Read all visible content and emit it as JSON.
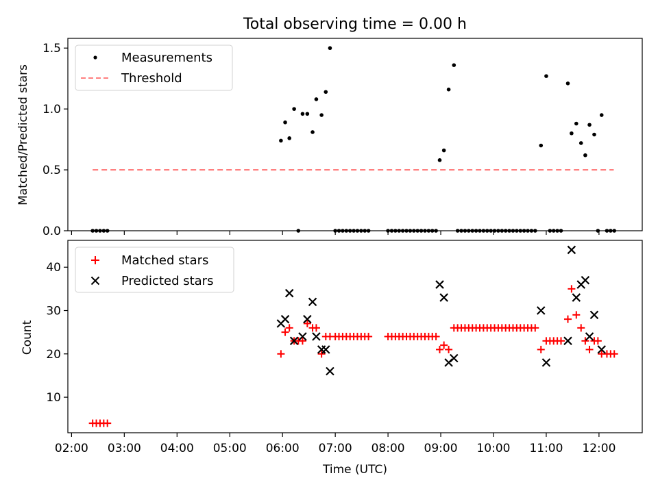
{
  "chart_data": [
    {
      "type": "scatter",
      "title": "Total observing time = 0.00 h",
      "ylabel": "Matched/Predicted stars",
      "xlabel": "",
      "ylim": [
        0,
        1.58
      ],
      "yticks": [
        0.0,
        0.5,
        1.0,
        1.5
      ],
      "ytick_labels": [
        "0.0",
        "0.5",
        "1.0",
        "1.5"
      ],
      "legend_position": "top-left",
      "grid": false,
      "series": [
        {
          "name": "Measurements",
          "marker": "dot",
          "color": "#000000",
          "points": [
            [
              2.4,
              0
            ],
            [
              2.47,
              0
            ],
            [
              2.54,
              0
            ],
            [
              2.61,
              0
            ],
            [
              2.68,
              0
            ],
            [
              5.97,
              0.74
            ],
            [
              6.05,
              0.89
            ],
            [
              6.13,
              0.76
            ],
            [
              6.22,
              1.0
            ],
            [
              6.3,
              0
            ],
            [
              6.38,
              0.96
            ],
            [
              6.47,
              0.96
            ],
            [
              6.57,
              0.81
            ],
            [
              6.64,
              1.08
            ],
            [
              6.74,
              0.95
            ],
            [
              6.82,
              1.14
            ],
            [
              6.9,
              1.5
            ],
            [
              7.0,
              0
            ],
            [
              7.07,
              0
            ],
            [
              7.14,
              0
            ],
            [
              7.21,
              0
            ],
            [
              7.28,
              0
            ],
            [
              7.35,
              0
            ],
            [
              7.42,
              0
            ],
            [
              7.49,
              0
            ],
            [
              7.56,
              0
            ],
            [
              7.63,
              0
            ],
            [
              8.0,
              0
            ],
            [
              8.07,
              0
            ],
            [
              8.14,
              0
            ],
            [
              8.21,
              0
            ],
            [
              8.28,
              0
            ],
            [
              8.35,
              0
            ],
            [
              8.42,
              0
            ],
            [
              8.49,
              0
            ],
            [
              8.56,
              0
            ],
            [
              8.63,
              0
            ],
            [
              8.7,
              0
            ],
            [
              8.77,
              0
            ],
            [
              8.84,
              0
            ],
            [
              8.91,
              0
            ],
            [
              8.98,
              0.58
            ],
            [
              9.06,
              0.66
            ],
            [
              9.15,
              1.16
            ],
            [
              9.25,
              1.36
            ],
            [
              9.32,
              0
            ],
            [
              9.39,
              0
            ],
            [
              9.46,
              0
            ],
            [
              9.53,
              0
            ],
            [
              9.6,
              0
            ],
            [
              9.67,
              0
            ],
            [
              9.74,
              0
            ],
            [
              9.81,
              0
            ],
            [
              9.88,
              0
            ],
            [
              9.95,
              0
            ],
            [
              10.02,
              0
            ],
            [
              10.09,
              0
            ],
            [
              10.16,
              0
            ],
            [
              10.23,
              0
            ],
            [
              10.3,
              0
            ],
            [
              10.37,
              0
            ],
            [
              10.44,
              0
            ],
            [
              10.51,
              0
            ],
            [
              10.58,
              0
            ],
            [
              10.65,
              0
            ],
            [
              10.72,
              0
            ],
            [
              10.79,
              0
            ],
            [
              10.9,
              0.7
            ],
            [
              11.0,
              1.27
            ],
            [
              11.07,
              0
            ],
            [
              11.14,
              0
            ],
            [
              11.21,
              0
            ],
            [
              11.28,
              0
            ],
            [
              11.41,
              1.21
            ],
            [
              11.48,
              0.8
            ],
            [
              11.57,
              0.88
            ],
            [
              11.66,
              0.72
            ],
            [
              11.74,
              0.62
            ],
            [
              11.82,
              0.87
            ],
            [
              11.91,
              0.79
            ],
            [
              11.98,
              0
            ],
            [
              12.05,
              0.95
            ],
            [
              12.15,
              0
            ],
            [
              12.22,
              0
            ],
            [
              12.29,
              0
            ]
          ]
        },
        {
          "name": "Threshold",
          "marker": "dashed-line",
          "color": "#ff7f7f",
          "points": [
            [
              2.4,
              0.5
            ],
            [
              12.28,
              0.5
            ]
          ]
        }
      ]
    },
    {
      "type": "scatter",
      "title": "",
      "ylabel": "Count",
      "xlabel": "Time (UTC)",
      "xlim": [
        1.93,
        12.82
      ],
      "xticks": [
        2,
        3,
        4,
        5,
        6,
        7,
        8,
        9,
        10,
        11,
        12
      ],
      "xtick_labels": [
        "02:00",
        "03:00",
        "04:00",
        "05:00",
        "06:00",
        "07:00",
        "08:00",
        "09:00",
        "10:00",
        "11:00",
        "12:00"
      ],
      "ylim": [
        1.8,
        46.2
      ],
      "yticks": [
        10,
        20,
        30,
        40
      ],
      "ytick_labels": [
        "10",
        "20",
        "30",
        "40"
      ],
      "legend_position": "top-left",
      "grid": false,
      "series": [
        {
          "name": "Matched stars",
          "marker": "plus",
          "color": "#ff0000",
          "points": [
            [
              2.4,
              4
            ],
            [
              2.47,
              4
            ],
            [
              2.54,
              4
            ],
            [
              2.61,
              4
            ],
            [
              2.68,
              4
            ],
            [
              5.97,
              20
            ],
            [
              6.05,
              25
            ],
            [
              6.13,
              26
            ],
            [
              6.22,
              23
            ],
            [
              6.3,
              23
            ],
            [
              6.38,
              23
            ],
            [
              6.47,
              27
            ],
            [
              6.57,
              26
            ],
            [
              6.64,
              26
            ],
            [
              6.74,
              20
            ],
            [
              6.82,
              24
            ],
            [
              6.9,
              24
            ],
            [
              7.0,
              24
            ],
            [
              7.07,
              24
            ],
            [
              7.14,
              24
            ],
            [
              7.21,
              24
            ],
            [
              7.28,
              24
            ],
            [
              7.35,
              24
            ],
            [
              7.42,
              24
            ],
            [
              7.49,
              24
            ],
            [
              7.56,
              24
            ],
            [
              7.63,
              24
            ],
            [
              8.0,
              24
            ],
            [
              8.07,
              24
            ],
            [
              8.14,
              24
            ],
            [
              8.21,
              24
            ],
            [
              8.28,
              24
            ],
            [
              8.35,
              24
            ],
            [
              8.42,
              24
            ],
            [
              8.49,
              24
            ],
            [
              8.56,
              24
            ],
            [
              8.63,
              24
            ],
            [
              8.7,
              24
            ],
            [
              8.77,
              24
            ],
            [
              8.84,
              24
            ],
            [
              8.91,
              24
            ],
            [
              8.98,
              21
            ],
            [
              9.06,
              22
            ],
            [
              9.15,
              21
            ],
            [
              9.25,
              26
            ],
            [
              9.32,
              26
            ],
            [
              9.39,
              26
            ],
            [
              9.46,
              26
            ],
            [
              9.53,
              26
            ],
            [
              9.6,
              26
            ],
            [
              9.67,
              26
            ],
            [
              9.74,
              26
            ],
            [
              9.81,
              26
            ],
            [
              9.88,
              26
            ],
            [
              9.95,
              26
            ],
            [
              10.02,
              26
            ],
            [
              10.09,
              26
            ],
            [
              10.16,
              26
            ],
            [
              10.23,
              26
            ],
            [
              10.3,
              26
            ],
            [
              10.37,
              26
            ],
            [
              10.44,
              26
            ],
            [
              10.51,
              26
            ],
            [
              10.58,
              26
            ],
            [
              10.65,
              26
            ],
            [
              10.72,
              26
            ],
            [
              10.79,
              26
            ],
            [
              10.9,
              21
            ],
            [
              11.0,
              23
            ],
            [
              11.07,
              23
            ],
            [
              11.14,
              23
            ],
            [
              11.21,
              23
            ],
            [
              11.28,
              23
            ],
            [
              11.41,
              28
            ],
            [
              11.48,
              35
            ],
            [
              11.57,
              29
            ],
            [
              11.66,
              26
            ],
            [
              11.74,
              23
            ],
            [
              11.82,
              21
            ],
            [
              11.91,
              23
            ],
            [
              11.98,
              23
            ],
            [
              12.05,
              20
            ],
            [
              12.15,
              20
            ],
            [
              12.22,
              20
            ],
            [
              12.29,
              20
            ]
          ]
        },
        {
          "name": "Predicted stars",
          "marker": "x",
          "color": "#000000",
          "points": [
            [
              5.97,
              27
            ],
            [
              6.05,
              28
            ],
            [
              6.13,
              34
            ],
            [
              6.22,
              23
            ],
            [
              6.38,
              24
            ],
            [
              6.47,
              28
            ],
            [
              6.57,
              32
            ],
            [
              6.64,
              24
            ],
            [
              6.74,
              21
            ],
            [
              6.82,
              21
            ],
            [
              6.9,
              16
            ],
            [
              8.98,
              36
            ],
            [
              9.06,
              33
            ],
            [
              9.15,
              18
            ],
            [
              9.25,
              19
            ],
            [
              10.9,
              30
            ],
            [
              11.0,
              18
            ],
            [
              11.41,
              23
            ],
            [
              11.48,
              44
            ],
            [
              11.57,
              33
            ],
            [
              11.66,
              36
            ],
            [
              11.74,
              37
            ],
            [
              11.82,
              24
            ],
            [
              11.91,
              29
            ],
            [
              12.05,
              21
            ]
          ]
        }
      ]
    }
  ]
}
